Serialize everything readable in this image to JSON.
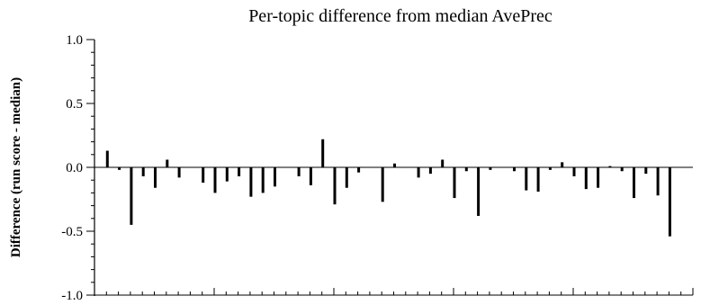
{
  "chart_data": {
    "type": "bar",
    "title": "Per-topic difference from median AvePrec",
    "xlabel": "",
    "ylabel": "Difference (run score - median)",
    "ylim": [
      -1.0,
      1.0
    ],
    "yticks": [
      "-1.0",
      "-0.5",
      "0.0",
      "0.5",
      "1.0"
    ],
    "xlim": [
      0,
      50
    ],
    "grid": false,
    "series": [
      {
        "values": [
          0.13,
          -0.02,
          -0.45,
          -0.07,
          -0.16,
          0.06,
          -0.08,
          0.0,
          -0.12,
          -0.2,
          -0.11,
          -0.07,
          -0.23,
          -0.2,
          -0.15,
          0.0,
          -0.07,
          -0.14,
          0.22,
          -0.29,
          -0.16,
          -0.04,
          0.0,
          -0.27,
          0.03,
          0.0,
          -0.08,
          -0.05,
          0.06,
          -0.24,
          -0.03,
          -0.38,
          -0.02,
          0.0,
          -0.03,
          -0.18,
          -0.19,
          -0.02,
          0.04,
          -0.07,
          -0.17,
          -0.16,
          0.01,
          -0.03,
          -0.24,
          -0.05,
          -0.22,
          -0.54
        ]
      }
    ]
  }
}
